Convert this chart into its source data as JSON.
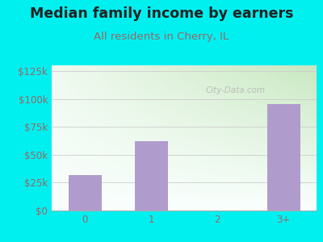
{
  "title": "Median family income by earners",
  "subtitle": "All residents in Cherry, IL",
  "categories": [
    "0",
    "1",
    "2",
    "3+"
  ],
  "values": [
    32000,
    62000,
    0,
    95000
  ],
  "bar_color": "#b09ccc",
  "bg_color": "#00f0f0",
  "chart_bg_top_left": "#f0faf0",
  "chart_bg_top_right": "#c8e8c0",
  "chart_bg_bottom": "#fafffe",
  "title_color": "#222222",
  "subtitle_color": "#996666",
  "tick_label_color": "#996666",
  "ytick_labels": [
    "$0",
    "$25k",
    "$50k",
    "$75k",
    "$100k",
    "$125k"
  ],
  "ytick_values": [
    0,
    25000,
    50000,
    75000,
    100000,
    125000
  ],
  "ylim": [
    0,
    130000
  ],
  "watermark": "City-Data.com",
  "title_fontsize": 12.5,
  "subtitle_fontsize": 9.5,
  "tick_fontsize": 8.5
}
